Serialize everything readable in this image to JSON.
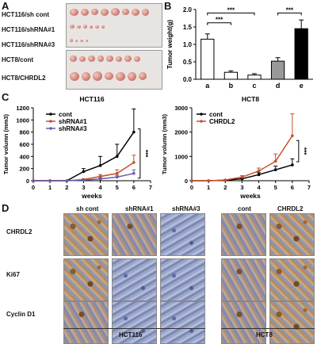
{
  "panels": {
    "a": "A",
    "b": "B",
    "c": "C",
    "d": "D"
  },
  "panel_a": {
    "rows": [
      "HCT116/sh cont",
      "HCT116/shRNA#1",
      "HCT116/shRNA#3",
      "HCT8/cont",
      "HCT8/CHRDL2"
    ]
  },
  "chart_data": [
    {
      "type": "bar",
      "categories": [
        "a",
        "b",
        "c",
        "d",
        "e"
      ],
      "values": [
        1.15,
        0.2,
        0.12,
        0.52,
        1.45
      ],
      "errors": [
        0.15,
        0.04,
        0.04,
        0.1,
        0.25
      ],
      "colors": [
        "#ffffff",
        "#ffffff",
        "#ffffff",
        "#999999",
        "#000000"
      ],
      "xlabel": "",
      "ylabel": "Tumor weight(g)",
      "ylim": [
        0,
        2.0
      ],
      "yticks": [
        "0.0",
        "0.5",
        "1.0",
        "1.5",
        "2.0"
      ],
      "significance": [
        "***",
        "***",
        "***"
      ]
    },
    {
      "type": "line",
      "title": "HCT116",
      "x": [
        0,
        1,
        2,
        3,
        4,
        5,
        6
      ],
      "series": [
        {
          "name": "cont",
          "color": "#000000",
          "values": [
            0,
            0,
            0,
            150,
            250,
            400,
            800
          ],
          "errors": [
            0,
            0,
            0,
            50,
            150,
            200,
            380
          ]
        },
        {
          "name": "shRNA#1",
          "color": "#c8502a",
          "values": [
            0,
            0,
            0,
            20,
            70,
            120,
            300
          ],
          "errors": [
            0,
            0,
            0,
            10,
            30,
            60,
            120
          ]
        },
        {
          "name": "shRNA#3",
          "color": "#6a5aa8",
          "values": [
            0,
            0,
            0,
            10,
            30,
            60,
            120
          ],
          "errors": [
            0,
            0,
            0,
            5,
            20,
            30,
            60
          ]
        }
      ],
      "xlabel": "weeks",
      "ylabel": "Tumor volumn (mm3)",
      "ylim": [
        0,
        1200
      ],
      "yticks": [
        "0",
        "200",
        "400",
        "600",
        "800",
        "1000",
        "1200"
      ],
      "xticks": [
        "0",
        "1",
        "2",
        "3",
        "4",
        "5",
        "6",
        "7"
      ],
      "significance": "***"
    },
    {
      "type": "line",
      "title": "HCT8",
      "x": [
        0,
        1,
        2,
        3,
        4,
        5,
        6
      ],
      "series": [
        {
          "name": "cont",
          "color": "#000000",
          "values": [
            0,
            0,
            20,
            80,
            250,
            450,
            650
          ],
          "errors": [
            0,
            0,
            10,
            30,
            80,
            150,
            250
          ]
        },
        {
          "name": "CHRDL2",
          "color": "#c8502a",
          "values": [
            0,
            0,
            30,
            150,
            400,
            800,
            1850
          ],
          "errors": [
            0,
            0,
            15,
            60,
            120,
            300,
            900
          ]
        }
      ],
      "xlabel": "weeks",
      "ylabel": "Tumor volumn (mm3)",
      "ylim": [
        0,
        3000
      ],
      "yticks": [
        "0",
        "1000",
        "2000",
        "3000"
      ],
      "xticks": [
        "0",
        "1",
        "2",
        "3",
        "4",
        "5",
        "6",
        "7"
      ],
      "significance": "***"
    }
  ],
  "panel_d": {
    "columns": [
      "sh cont",
      "shRNA#1",
      "shRNA#3",
      "cont",
      "CHRDL2"
    ],
    "rows": [
      "CHRDL2",
      "Ki67",
      "Cyclin D1"
    ],
    "groups": [
      "HCT116",
      "HCT8"
    ]
  }
}
